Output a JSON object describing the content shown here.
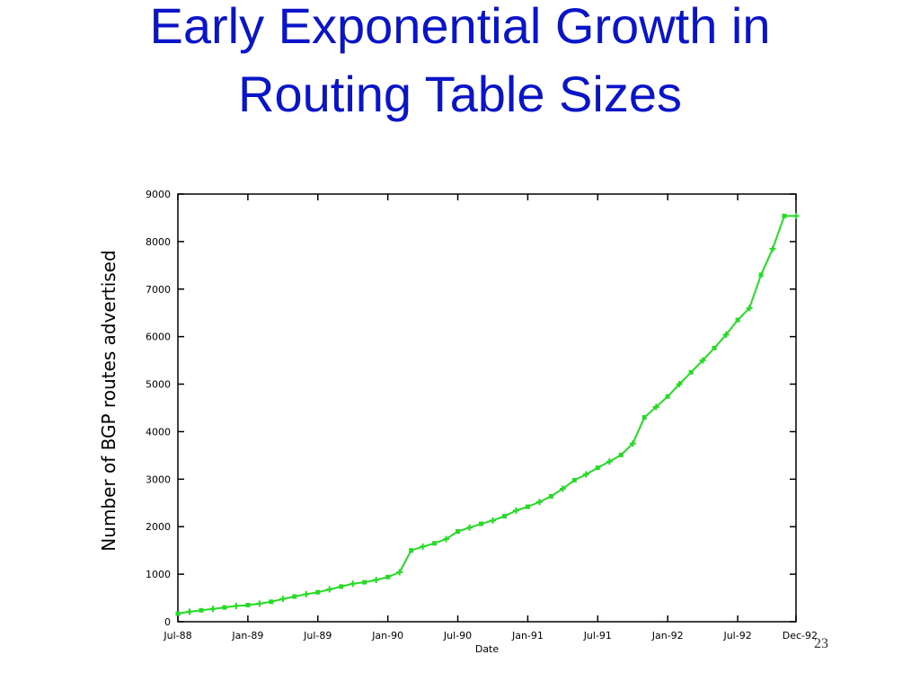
{
  "slide": {
    "title_line1": "Early Exponential Growth in",
    "title_line2": "Routing Table Sizes",
    "slide_number": "23"
  },
  "colors": {
    "title": "#0a14c8",
    "series": "#22dd22",
    "axis": "#000000"
  },
  "chart_data": {
    "type": "line",
    "xlabel": "Date",
    "ylabel": "Number of BGP routes advertised",
    "ylim": [
      0,
      9000
    ],
    "yticks": [
      0,
      1000,
      2000,
      3000,
      4000,
      5000,
      6000,
      7000,
      8000,
      9000
    ],
    "xlim": [
      0,
      53
    ],
    "xticks": [
      {
        "x": 0,
        "label": "Jul-88"
      },
      {
        "x": 6,
        "label": "Jan-89"
      },
      {
        "x": 12,
        "label": "Jul-89"
      },
      {
        "x": 18,
        "label": "Jan-90"
      },
      {
        "x": 24,
        "label": "Jul-90"
      },
      {
        "x": 30,
        "label": "Jan-91"
      },
      {
        "x": 36,
        "label": "Jul-91"
      },
      {
        "x": 42,
        "label": "Jan-92"
      },
      {
        "x": 48,
        "label": "Jul-92"
      },
      {
        "x": 53,
        "label": "Dec-92"
      }
    ],
    "grid": false,
    "series": [
      {
        "x": [
          0,
          1,
          2,
          3,
          4,
          5,
          6,
          7,
          8,
          9,
          10,
          11,
          12,
          13,
          14,
          15,
          16,
          17,
          18,
          19,
          20,
          21,
          22,
          23,
          24,
          25,
          26,
          27,
          28,
          29,
          30,
          31,
          32,
          33,
          34,
          35,
          36,
          37,
          38,
          39,
          40,
          41,
          42,
          43,
          44,
          45,
          46,
          47,
          48,
          49,
          50,
          51,
          52,
          53
        ],
        "values": [
          170,
          210,
          240,
          270,
          300,
          330,
          350,
          380,
          420,
          480,
          530,
          580,
          620,
          680,
          740,
          800,
          830,
          880,
          940,
          1040,
          1500,
          1580,
          1650,
          1740,
          1900,
          1980,
          2060,
          2130,
          2220,
          2340,
          2420,
          2520,
          2640,
          2800,
          2980,
          3100,
          3240,
          3370,
          3510,
          3750,
          4300,
          4520,
          4740,
          5000,
          5250,
          5500,
          5760,
          6040,
          6350,
          6600,
          7300,
          7850,
          8540,
          8540
        ]
      }
    ]
  }
}
